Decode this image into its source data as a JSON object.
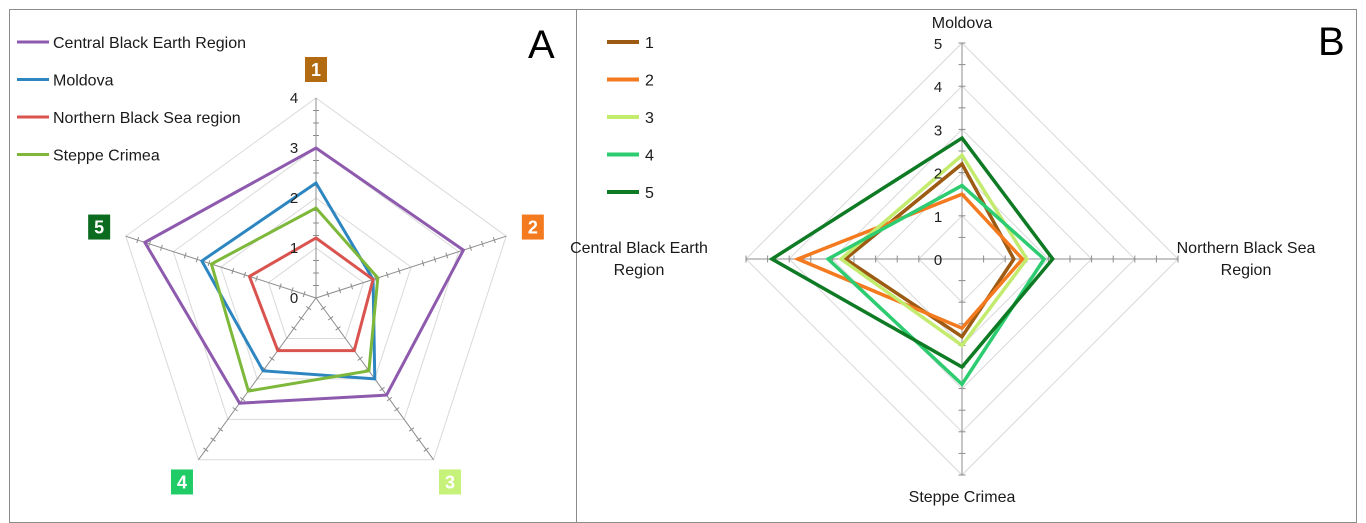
{
  "chart_data": [
    {
      "panel": "A",
      "type": "radar",
      "axes": [
        "1",
        "2",
        "3",
        "4",
        "5"
      ],
      "axis_colors": [
        "#B26B10",
        "#F47A1F",
        "#C6F27A",
        "#20CC66",
        "#0B6B1F"
      ],
      "range": [
        0,
        4
      ],
      "ticks": [
        "0",
        "1",
        "2",
        "3",
        "4"
      ],
      "grid": true,
      "legend_position": "top-left",
      "series": [
        {
          "name": "Central Black Earth Region",
          "color": "#8E5AAE",
          "values": [
            3.0,
            3.1,
            2.4,
            2.6,
            3.6
          ]
        },
        {
          "name": "Moldova",
          "color": "#2E86C1",
          "values": [
            2.3,
            1.2,
            2.0,
            1.8,
            2.4
          ]
        },
        {
          "name": "Northern Black Sea region",
          "color": "#D9534F",
          "values": [
            1.2,
            1.2,
            1.3,
            1.3,
            1.4
          ]
        },
        {
          "name": "Steppe Crimea",
          "color": "#7DB83A",
          "values": [
            1.8,
            1.3,
            1.8,
            2.3,
            2.2
          ]
        }
      ]
    },
    {
      "panel": "B",
      "type": "radar",
      "axes": [
        "Moldova",
        "Northern Black Sea\nRegion",
        "Steppe Crimea",
        "Central Black Earth\nRegion"
      ],
      "range": [
        0,
        5
      ],
      "ticks": [
        "0",
        "1",
        "2",
        "3",
        "4",
        "5"
      ],
      "grid": true,
      "legend_position": "top-left",
      "series": [
        {
          "name": "1",
          "color": "#9C5A12",
          "values": [
            2.2,
            1.2,
            1.8,
            2.7
          ]
        },
        {
          "name": "2",
          "color": "#F47A1F",
          "values": [
            1.5,
            1.4,
            1.6,
            3.8
          ]
        },
        {
          "name": "3",
          "color": "#C3EB6E",
          "values": [
            2.4,
            1.5,
            2.0,
            2.8
          ]
        },
        {
          "name": "4",
          "color": "#2ECC71",
          "values": [
            1.7,
            1.9,
            2.9,
            3.1
          ]
        },
        {
          "name": "5",
          "color": "#0E7A24",
          "values": [
            2.8,
            2.1,
            2.5,
            4.4
          ]
        }
      ]
    }
  ]
}
